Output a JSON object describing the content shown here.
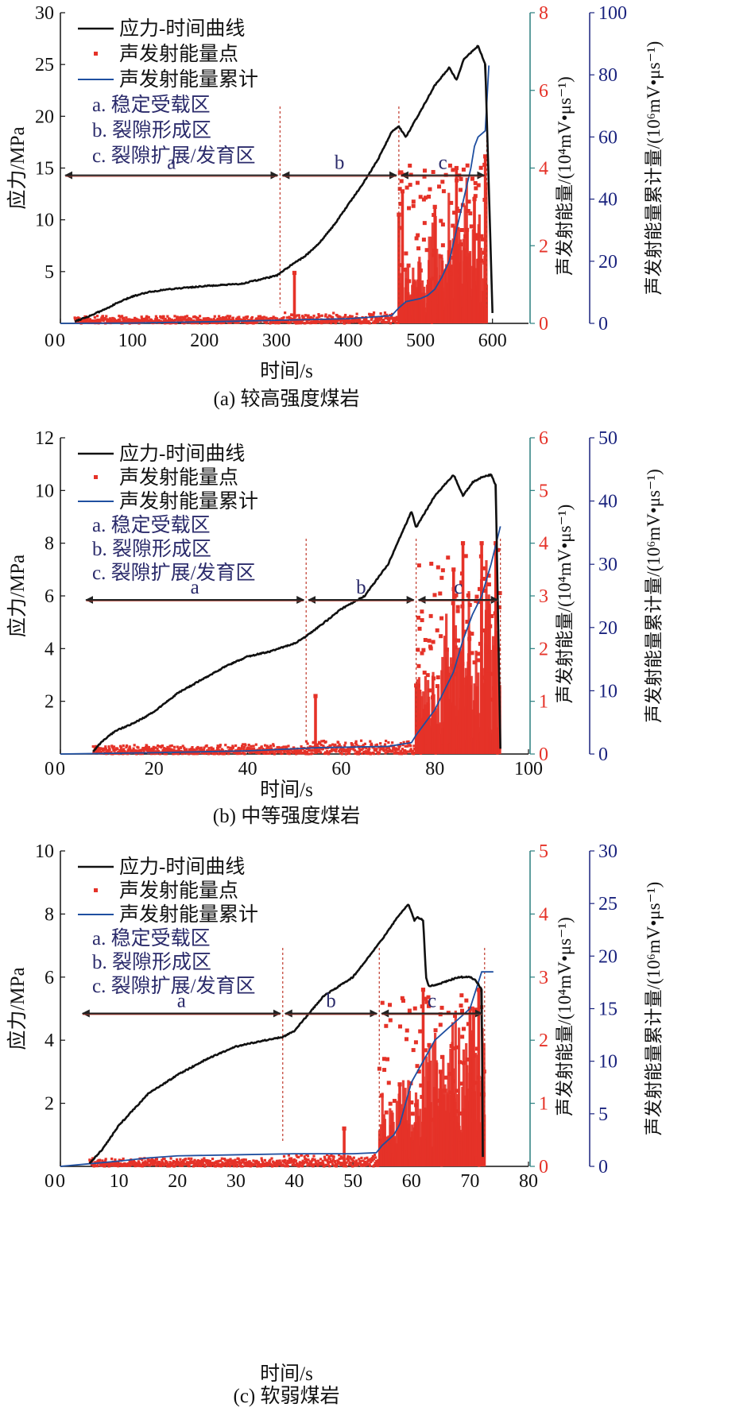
{
  "chart_data": [
    {
      "type": "line",
      "caption": "(a) 较高强度煤岩",
      "xlabel": "时间/s",
      "xlim": [
        0,
        650
      ],
      "xticks": [
        0,
        100,
        200,
        300,
        400,
        500,
        600
      ],
      "ylabel_left": "应力/MPa",
      "ylim_left": [
        0,
        30
      ],
      "yticks_left": [
        5,
        10,
        15,
        20,
        25,
        30
      ],
      "ylabel_mid": "声发射能量/(10⁴mV•μs⁻¹)",
      "ylim_mid": [
        0,
        8
      ],
      "yticks_mid": [
        0,
        2,
        4,
        6,
        8
      ],
      "ylabel_right": "声发射能量累计量/(10⁶mV•μs⁻¹)",
      "ylim_right": [
        0,
        100
      ],
      "yticks_right": [
        0,
        20,
        40,
        60,
        80,
        100
      ],
      "legend": [
        "应力-时间曲线",
        "声发射能量点",
        "声发射能量累计",
        "a. 稳定受载区",
        "b. 裂隙形成区",
        "c. 裂隙扩展/发育区"
      ],
      "zones": {
        "boundaries": [
          305,
          470,
          592
        ],
        "labels": [
          "a",
          "b",
          "c"
        ],
        "arrow_y": 14.3
      },
      "stress": {
        "x": [
          20,
          40,
          60,
          80,
          100,
          120,
          150,
          200,
          250,
          300,
          320,
          340,
          360,
          380,
          400,
          420,
          440,
          460,
          470,
          480,
          500,
          520,
          540,
          550,
          560,
          580,
          590,
          600
        ],
        "y": [
          0.2,
          0.7,
          1.3,
          2.0,
          2.6,
          3.0,
          3.3,
          3.6,
          3.8,
          4.6,
          5.6,
          6.5,
          7.8,
          9.5,
          11.5,
          13.5,
          15.7,
          18.5,
          19.0,
          18.0,
          20.5,
          23.0,
          24.7,
          23.5,
          25.5,
          26.8,
          25.0,
          1.0
        ]
      },
      "cumulative": {
        "x": [
          0,
          100,
          200,
          300,
          400,
          460,
          470,
          480,
          500,
          510,
          520,
          530,
          540,
          550,
          560,
          570,
          575,
          580,
          590,
          595
        ],
        "y": [
          0,
          0.1,
          0.5,
          1.0,
          1.5,
          2.5,
          5,
          7,
          8,
          9,
          11,
          15,
          20,
          30,
          40,
          50,
          57,
          60,
          62,
          83
        ]
      },
      "ae_peaks": [
        [
          325,
          1.3
        ],
        [
          470,
          2.8
        ],
        [
          475,
          3.4
        ],
        [
          520,
          3.0
        ],
        [
          550,
          4.0
        ],
        [
          575,
          3.2
        ],
        [
          590,
          4.3
        ]
      ],
      "ae_max": 4.3
    },
    {
      "type": "line",
      "caption": "(b) 中等强度煤岩",
      "xlabel": "时间/s",
      "xlim": [
        0,
        100
      ],
      "xticks": [
        0,
        20,
        40,
        60,
        80,
        100
      ],
      "ylabel_left": "应力/MPa",
      "ylim_left": [
        0,
        12
      ],
      "yticks_left": [
        2,
        4,
        6,
        8,
        10,
        12
      ],
      "ylabel_mid": "声发射能量/(10⁴mV•μs⁻¹)",
      "ylim_mid": [
        0,
        6
      ],
      "yticks_mid": [
        0,
        1,
        2,
        3,
        4,
        5,
        6
      ],
      "ylabel_right": "声发射能量累计量/(10⁶mV•μs⁻¹)",
      "ylim_right": [
        0,
        50
      ],
      "yticks_right": [
        0,
        10,
        20,
        30,
        40,
        50
      ],
      "legend": [
        "应力-时间曲线",
        "声发射能量点",
        "声发射能量累计",
        "a. 稳定受载区",
        "b. 裂隙形成区",
        "c. 裂隙扩展/发育区"
      ],
      "zones": {
        "boundaries": [
          52.5,
          76,
          94
        ],
        "labels": [
          "a",
          "b",
          "c"
        ],
        "arrow_y": 5.85
      },
      "stress": {
        "x": [
          7,
          9,
          12,
          16,
          20,
          25,
          30,
          35,
          40,
          45,
          50,
          52,
          55,
          60,
          65,
          70,
          75,
          76,
          80,
          84,
          86,
          88,
          90,
          92,
          93,
          94
        ],
        "y": [
          0.1,
          0.5,
          0.9,
          1.2,
          1.6,
          2.3,
          2.8,
          3.3,
          3.7,
          3.9,
          4.2,
          4.4,
          4.8,
          5.5,
          6.0,
          7.2,
          9.2,
          8.6,
          9.8,
          10.6,
          9.8,
          10.3,
          10.5,
          10.6,
          10.2,
          0.2
        ]
      },
      "cumulative": {
        "x": [
          0,
          20,
          40,
          55,
          70,
          75,
          76,
          78,
          80,
          82,
          84,
          86,
          88,
          90,
          92,
          93,
          94
        ],
        "y": [
          0,
          0.2,
          0.5,
          1.0,
          1.2,
          1.8,
          3,
          5,
          7,
          10,
          13,
          18,
          22,
          25,
          30,
          33,
          36
        ]
      },
      "ae_peaks": [
        [
          54.5,
          1.1
        ],
        [
          76,
          1.3
        ],
        [
          84,
          3.5
        ],
        [
          86,
          4.0
        ],
        [
          90,
          4.0
        ],
        [
          93,
          4.0
        ]
      ],
      "ae_max": 4.1
    },
    {
      "type": "line",
      "caption": "(c) 软弱煤岩",
      "xlabel": "时间/s",
      "xlim": [
        0,
        80
      ],
      "xticks": [
        0,
        10,
        20,
        30,
        40,
        50,
        60,
        70,
        80
      ],
      "ylabel_left": "应力/MPa",
      "ylim_left": [
        0,
        10
      ],
      "yticks_left": [
        2,
        4,
        6,
        8,
        10
      ],
      "ylabel_mid": "声发射能量/(10⁴mV•μs⁻¹)",
      "ylim_mid": [
        0,
        5
      ],
      "yticks_mid": [
        0,
        1,
        2,
        3,
        4,
        5
      ],
      "ylabel_right": "声发射能量累计量/(10⁶mV•μs⁻¹)",
      "ylim_right": [
        0,
        30
      ],
      "yticks_right": [
        0,
        5,
        10,
        15,
        20,
        25,
        30
      ],
      "legend": [
        "应力-时间曲线",
        "声发射能量点",
        "声发射能量累计",
        "a. 稳定受载区",
        "b. 裂隙形成区",
        "c. 裂隙扩展/发育区"
      ],
      "zones": {
        "boundaries": [
          38,
          54.5,
          72.5
        ],
        "labels": [
          "a",
          "b",
          "c"
        ],
        "arrow_y": 4.85
      },
      "stress": {
        "x": [
          5,
          7,
          10,
          15,
          20,
          25,
          30,
          35,
          38,
          40,
          45,
          50,
          55,
          58,
          59.5,
          60.5,
          61,
          62,
          62.5,
          63,
          65,
          68,
          70,
          71,
          72,
          72.2
        ],
        "y": [
          0.1,
          0.5,
          1.3,
          2.3,
          2.9,
          3.4,
          3.8,
          4.0,
          4.1,
          4.3,
          5.4,
          6.0,
          7.2,
          8.0,
          8.3,
          7.8,
          7.9,
          7.8,
          6.0,
          5.7,
          5.8,
          6.0,
          6.0,
          5.9,
          5.6,
          0.3
        ]
      },
      "cumulative": {
        "x": [
          0,
          10,
          15,
          20,
          30,
          40,
          50,
          54,
          55,
          57,
          58,
          59,
          60,
          62,
          64,
          66,
          68,
          70,
          72,
          74
        ],
        "y": [
          0,
          0.5,
          0.8,
          1.0,
          1.1,
          1.2,
          1.2,
          1.3,
          2,
          3,
          4,
          6,
          8,
          10,
          12,
          13,
          14,
          15,
          18.5,
          18.5
        ]
      },
      "ae_peaks": [
        [
          48.5,
          0.6
        ],
        [
          58,
          1.3
        ],
        [
          62,
          2.8
        ],
        [
          65,
          1.5
        ],
        [
          70,
          2.5
        ],
        [
          71.5,
          2.8
        ]
      ],
      "ae_max": 2.9
    }
  ]
}
